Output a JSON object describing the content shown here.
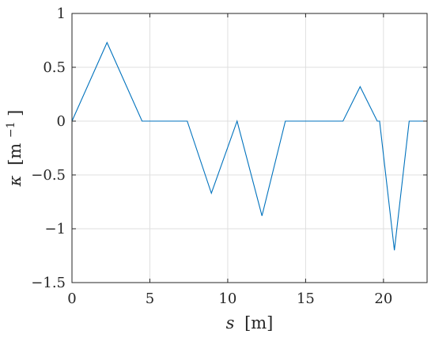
{
  "chart_data": {
    "type": "line",
    "title": "",
    "xlabel_symbol": "s",
    "xlabel_unit": "[m]",
    "ylabel_symbol": "κ",
    "ylabel_unit": "[m",
    "ylabel_exponent": "−1",
    "ylabel_close": "]",
    "xlim": [
      0,
      22.8
    ],
    "ylim": [
      -1.5,
      1
    ],
    "xticks": [
      0,
      5,
      10,
      15,
      20
    ],
    "xtick_labels": [
      "0",
      "5",
      "10",
      "15",
      "20"
    ],
    "yticks": [
      -1.5,
      -1,
      -0.5,
      0,
      0.5,
      1
    ],
    "ytick_labels": [
      "−1.5",
      "−1",
      "−0.5",
      "0",
      "0.5",
      "1"
    ],
    "grid": true,
    "series": [
      {
        "color": "#0072bd",
        "x": [
          0,
          2.25,
          4.5,
          7.4,
          8.95,
          10.6,
          12.2,
          13.7,
          17.4,
          18.5,
          19.6,
          19.75,
          20.7,
          21.65,
          22.8
        ],
        "y": [
          0,
          0.73,
          0,
          0,
          -0.67,
          0,
          -0.88,
          0,
          0,
          0.32,
          0,
          0,
          -1.2,
          0,
          0
        ]
      }
    ]
  }
}
